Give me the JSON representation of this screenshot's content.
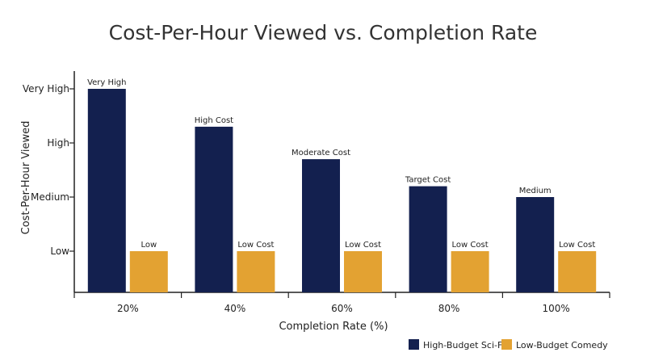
{
  "chart_data": {
    "type": "bar",
    "title": "Cost-Per-Hour Viewed vs. Completion Rate",
    "xlabel": "Completion Rate (%)",
    "ylabel": "Cost-Per-Hour Viewed",
    "categories": [
      "20%",
      "40%",
      "60%",
      "80%",
      "100%"
    ],
    "y_ticks": [
      {
        "label": "Low",
        "value": 1
      },
      {
        "label": "Medium",
        "value": 2
      },
      {
        "label": "High",
        "value": 3
      },
      {
        "label": "Very High",
        "value": 4
      }
    ],
    "ylim": [
      0.0,
      4.0
    ],
    "grid": false,
    "legend_position": "bottom-right",
    "series": [
      {
        "name": "High-Budget Sci-Fi",
        "color": "#13204f",
        "values": [
          4.0,
          3.3,
          2.7,
          2.2,
          2.0
        ],
        "data_labels": [
          "Very High",
          "High Cost",
          "Moderate Cost",
          "Target Cost",
          "Medium"
        ]
      },
      {
        "name": "Low-Budget Comedy",
        "color": "#e3a232",
        "values": [
          1.0,
          1.0,
          1.0,
          1.0,
          1.0
        ],
        "data_labels": [
          "Low",
          "Low Cost",
          "Low Cost",
          "Low Cost",
          "Low Cost"
        ]
      }
    ]
  }
}
